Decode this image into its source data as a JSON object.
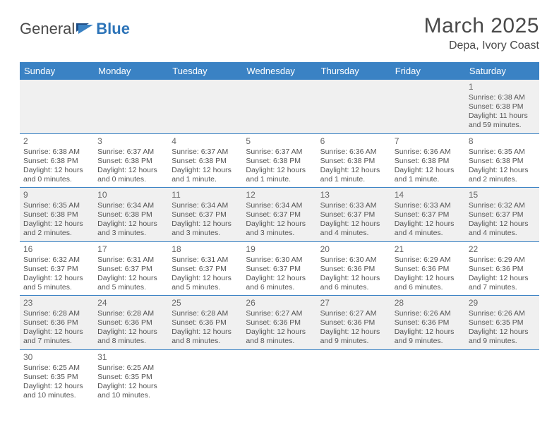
{
  "brand": {
    "first": "General",
    "second": "Blue"
  },
  "title": "March 2025",
  "location": "Depa, Ivory Coast",
  "colors": {
    "header_bg": "#3a82c4",
    "header_fg": "#ffffff",
    "row_border": "#3a82c4",
    "row_shade": "#f0f0f0",
    "text": "#555555",
    "brand_accent": "#2d74b8"
  },
  "fonts": {
    "title_size": 30,
    "location_size": 16,
    "dayhead_size": 13,
    "cell_size": 10.5
  },
  "day_headers": [
    "Sunday",
    "Monday",
    "Tuesday",
    "Wednesday",
    "Thursday",
    "Friday",
    "Saturday"
  ],
  "weeks": [
    [
      null,
      null,
      null,
      null,
      null,
      null,
      {
        "n": "1",
        "sr": "Sunrise: 6:38 AM",
        "ss": "Sunset: 6:38 PM",
        "dl": "Daylight: 11 hours and 59 minutes."
      }
    ],
    [
      {
        "n": "2",
        "sr": "Sunrise: 6:38 AM",
        "ss": "Sunset: 6:38 PM",
        "dl": "Daylight: 12 hours and 0 minutes."
      },
      {
        "n": "3",
        "sr": "Sunrise: 6:37 AM",
        "ss": "Sunset: 6:38 PM",
        "dl": "Daylight: 12 hours and 0 minutes."
      },
      {
        "n": "4",
        "sr": "Sunrise: 6:37 AM",
        "ss": "Sunset: 6:38 PM",
        "dl": "Daylight: 12 hours and 1 minute."
      },
      {
        "n": "5",
        "sr": "Sunrise: 6:37 AM",
        "ss": "Sunset: 6:38 PM",
        "dl": "Daylight: 12 hours and 1 minute."
      },
      {
        "n": "6",
        "sr": "Sunrise: 6:36 AM",
        "ss": "Sunset: 6:38 PM",
        "dl": "Daylight: 12 hours and 1 minute."
      },
      {
        "n": "7",
        "sr": "Sunrise: 6:36 AM",
        "ss": "Sunset: 6:38 PM",
        "dl": "Daylight: 12 hours and 1 minute."
      },
      {
        "n": "8",
        "sr": "Sunrise: 6:35 AM",
        "ss": "Sunset: 6:38 PM",
        "dl": "Daylight: 12 hours and 2 minutes."
      }
    ],
    [
      {
        "n": "9",
        "sr": "Sunrise: 6:35 AM",
        "ss": "Sunset: 6:38 PM",
        "dl": "Daylight: 12 hours and 2 minutes."
      },
      {
        "n": "10",
        "sr": "Sunrise: 6:34 AM",
        "ss": "Sunset: 6:38 PM",
        "dl": "Daylight: 12 hours and 3 minutes."
      },
      {
        "n": "11",
        "sr": "Sunrise: 6:34 AM",
        "ss": "Sunset: 6:37 PM",
        "dl": "Daylight: 12 hours and 3 minutes."
      },
      {
        "n": "12",
        "sr": "Sunrise: 6:34 AM",
        "ss": "Sunset: 6:37 PM",
        "dl": "Daylight: 12 hours and 3 minutes."
      },
      {
        "n": "13",
        "sr": "Sunrise: 6:33 AM",
        "ss": "Sunset: 6:37 PM",
        "dl": "Daylight: 12 hours and 4 minutes."
      },
      {
        "n": "14",
        "sr": "Sunrise: 6:33 AM",
        "ss": "Sunset: 6:37 PM",
        "dl": "Daylight: 12 hours and 4 minutes."
      },
      {
        "n": "15",
        "sr": "Sunrise: 6:32 AM",
        "ss": "Sunset: 6:37 PM",
        "dl": "Daylight: 12 hours and 4 minutes."
      }
    ],
    [
      {
        "n": "16",
        "sr": "Sunrise: 6:32 AM",
        "ss": "Sunset: 6:37 PM",
        "dl": "Daylight: 12 hours and 5 minutes."
      },
      {
        "n": "17",
        "sr": "Sunrise: 6:31 AM",
        "ss": "Sunset: 6:37 PM",
        "dl": "Daylight: 12 hours and 5 minutes."
      },
      {
        "n": "18",
        "sr": "Sunrise: 6:31 AM",
        "ss": "Sunset: 6:37 PM",
        "dl": "Daylight: 12 hours and 5 minutes."
      },
      {
        "n": "19",
        "sr": "Sunrise: 6:30 AM",
        "ss": "Sunset: 6:37 PM",
        "dl": "Daylight: 12 hours and 6 minutes."
      },
      {
        "n": "20",
        "sr": "Sunrise: 6:30 AM",
        "ss": "Sunset: 6:36 PM",
        "dl": "Daylight: 12 hours and 6 minutes."
      },
      {
        "n": "21",
        "sr": "Sunrise: 6:29 AM",
        "ss": "Sunset: 6:36 PM",
        "dl": "Daylight: 12 hours and 6 minutes."
      },
      {
        "n": "22",
        "sr": "Sunrise: 6:29 AM",
        "ss": "Sunset: 6:36 PM",
        "dl": "Daylight: 12 hours and 7 minutes."
      }
    ],
    [
      {
        "n": "23",
        "sr": "Sunrise: 6:28 AM",
        "ss": "Sunset: 6:36 PM",
        "dl": "Daylight: 12 hours and 7 minutes."
      },
      {
        "n": "24",
        "sr": "Sunrise: 6:28 AM",
        "ss": "Sunset: 6:36 PM",
        "dl": "Daylight: 12 hours and 8 minutes."
      },
      {
        "n": "25",
        "sr": "Sunrise: 6:28 AM",
        "ss": "Sunset: 6:36 PM",
        "dl": "Daylight: 12 hours and 8 minutes."
      },
      {
        "n": "26",
        "sr": "Sunrise: 6:27 AM",
        "ss": "Sunset: 6:36 PM",
        "dl": "Daylight: 12 hours and 8 minutes."
      },
      {
        "n": "27",
        "sr": "Sunrise: 6:27 AM",
        "ss": "Sunset: 6:36 PM",
        "dl": "Daylight: 12 hours and 9 minutes."
      },
      {
        "n": "28",
        "sr": "Sunrise: 6:26 AM",
        "ss": "Sunset: 6:36 PM",
        "dl": "Daylight: 12 hours and 9 minutes."
      },
      {
        "n": "29",
        "sr": "Sunrise: 6:26 AM",
        "ss": "Sunset: 6:35 PM",
        "dl": "Daylight: 12 hours and 9 minutes."
      }
    ],
    [
      {
        "n": "30",
        "sr": "Sunrise: 6:25 AM",
        "ss": "Sunset: 6:35 PM",
        "dl": "Daylight: 12 hours and 10 minutes."
      },
      {
        "n": "31",
        "sr": "Sunrise: 6:25 AM",
        "ss": "Sunset: 6:35 PM",
        "dl": "Daylight: 12 hours and 10 minutes."
      },
      null,
      null,
      null,
      null,
      null
    ]
  ]
}
